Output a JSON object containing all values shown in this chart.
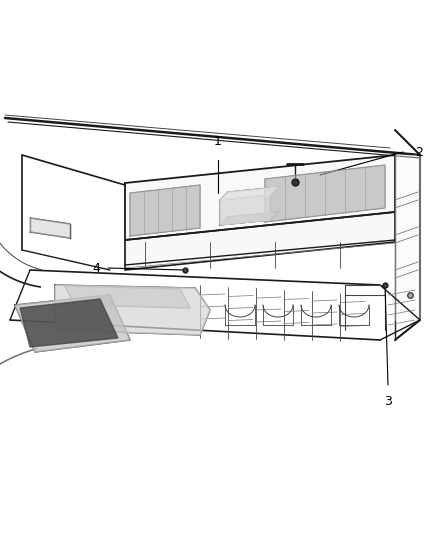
{
  "background_color": "#ffffff",
  "fig_width": 4.38,
  "fig_height": 5.33,
  "dpi": 100,
  "line_color": "#1a1a1a",
  "med_color": "#444444",
  "light_color": "#777777",
  "callout_color": "#000000",
  "callout_fontsize": 9,
  "label_1": "1",
  "label_2": "2",
  "label_3": "3",
  "label_4": "4"
}
